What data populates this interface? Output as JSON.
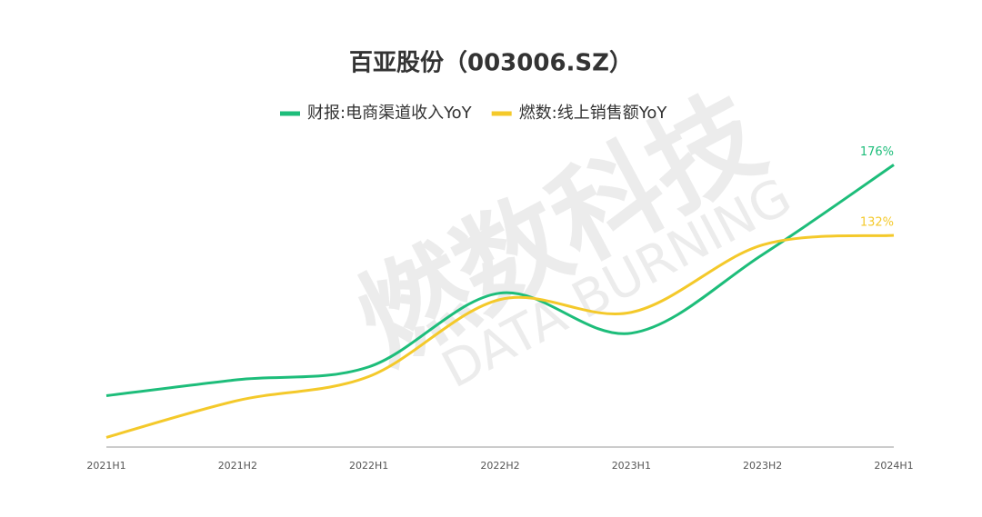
{
  "chart_data": {
    "type": "line",
    "title": "百亚股份（003006.SZ）",
    "watermark": {
      "text": "燃数科技",
      "subtext": "DATA BURNING"
    },
    "categories": [
      "2021H1",
      "2021H2",
      "2022H1",
      "2022H2",
      "2023H1",
      "2023H2",
      "2024H1"
    ],
    "series": [
      {
        "name": "财报:电商渠道收入YoY",
        "color": "#1dbd7a",
        "values": [
          32,
          42,
          50,
          96,
          71,
          120,
          176
        ],
        "value_labels": [
          null,
          null,
          null,
          null,
          null,
          null,
          "176%"
        ]
      },
      {
        "name": "燃数:线上销售额YoY",
        "color": "#f4c92a",
        "values": [
          6,
          29,
          44,
          92,
          84,
          126,
          132
        ],
        "value_labels": [
          null,
          null,
          null,
          null,
          null,
          null,
          "132%"
        ]
      }
    ],
    "ylim": [
      0,
      200
    ],
    "grid": false,
    "legend": "top"
  }
}
